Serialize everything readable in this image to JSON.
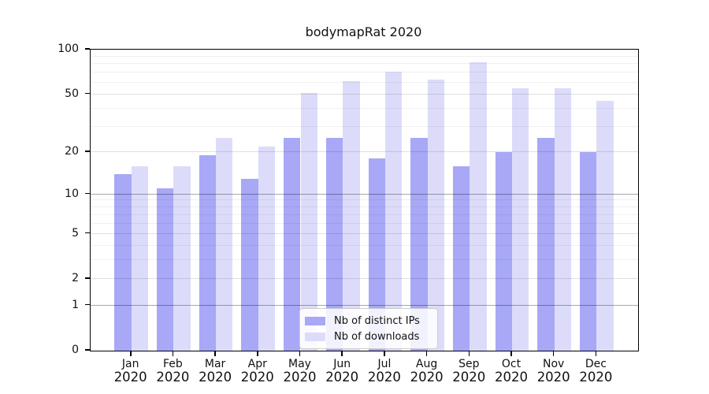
{
  "title": "bodymapRat 2020",
  "chart_data": {
    "type": "bar",
    "title": "bodymapRat 2020",
    "categories": [
      "Jan",
      "Feb",
      "Mar",
      "Apr",
      "May",
      "Jun",
      "Jul",
      "Aug",
      "Sep",
      "Oct",
      "Nov",
      "Dec"
    ],
    "year": "2020",
    "series": [
      {
        "name": "Nb of distinct IPs",
        "color": "#a8a8f7",
        "values": [
          14,
          11,
          19,
          13,
          25,
          25,
          18,
          25,
          16,
          20,
          25,
          20
        ]
      },
      {
        "name": "Nb of downloads",
        "color": "#dcdcfa",
        "values": [
          16,
          16,
          25,
          22,
          51,
          61,
          71,
          63,
          82,
          55,
          55,
          45
        ]
      }
    ],
    "y_scale": "log1p",
    "ylim": [
      0,
      100
    ],
    "y_tick_labels": [
      "0",
      "1",
      "2",
      "5",
      "10",
      "20",
      "50",
      "100"
    ],
    "y_ticks": [
      0,
      1,
      2,
      5,
      10,
      20,
      50,
      100
    ],
    "gridlines": {
      "power": [
        1,
        10
      ],
      "major": [
        2,
        5,
        20,
        50
      ],
      "minor": [
        3,
        4,
        6,
        7,
        8,
        9,
        30,
        40,
        60,
        70,
        80,
        90
      ]
    },
    "legend_position": "lower center",
    "grid": true
  }
}
